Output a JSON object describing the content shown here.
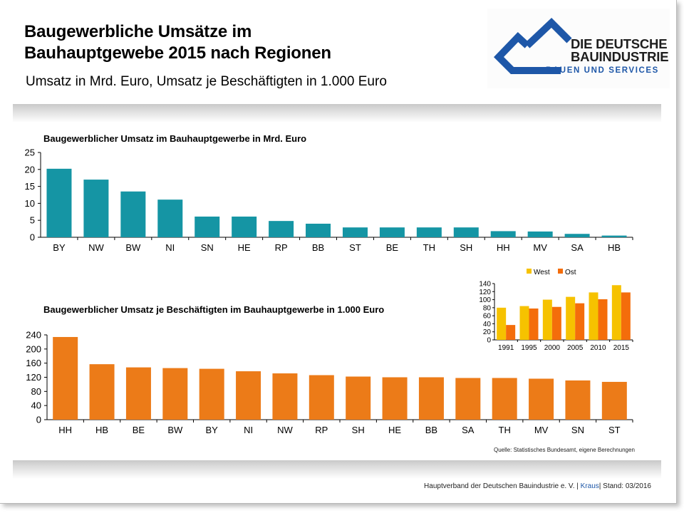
{
  "header": {
    "title_line1": "Baugewerbliche Umsätze im",
    "title_line2": "Bauhauptgewebe 2015 nach Regionen",
    "subtitle": "Umsatz in Mrd. Euro, Umsatz je Beschäftigten in 1.000 Euro"
  },
  "logo": {
    "line1": "DIE DEUTSCHE",
    "line2": "BAUINDUSTRIE",
    "line3": "BAUEN UND SERVICES",
    "color": "#1e57a8"
  },
  "source": "Quelle: Statistisches Bundesamt, eigene Berechnungen",
  "footer": {
    "org": "Hauptverband der Deutschen Bauindustrie e. V.",
    "author": "Kraus",
    "date": "Stand: 03/2016",
    "sep": "|"
  },
  "chart_data": [
    {
      "type": "bar",
      "title": "Baugewerblicher Umsatz im Bauhauptgewerbe in Mrd. Euro",
      "categories": [
        "BY",
        "NW",
        "BW",
        "NI",
        "SN",
        "HE",
        "RP",
        "BB",
        "ST",
        "BE",
        "TH",
        "SH",
        "HH",
        "MV",
        "SA",
        "HB"
      ],
      "values": [
        20.2,
        17.0,
        13.5,
        11.1,
        6.1,
        6.1,
        4.8,
        4.0,
        2.9,
        2.9,
        2.9,
        2.9,
        1.8,
        1.7,
        1.0,
        0.5
      ],
      "ylim": [
        0,
        25
      ],
      "yticks": [
        0,
        5,
        10,
        15,
        20,
        25
      ],
      "color": "#1595a4"
    },
    {
      "type": "bar",
      "title": "Baugewerblicher Umsatz je Beschäftigten im Bauhauptgewerbe in 1.000 Euro",
      "categories": [
        "HH",
        "HB",
        "BE",
        "BW",
        "BY",
        "NI",
        "NW",
        "RP",
        "SH",
        "HE",
        "BB",
        "SA",
        "TH",
        "MV",
        "SN",
        "ST"
      ],
      "values": [
        234,
        157,
        148,
        146,
        144,
        137,
        131,
        126,
        122,
        120,
        120,
        118,
        118,
        116,
        111,
        107
      ],
      "ylim": [
        0,
        240
      ],
      "yticks": [
        0,
        40,
        80,
        120,
        160,
        200,
        240
      ],
      "color": "#ec7b18"
    },
    {
      "type": "bar",
      "categories": [
        "1991",
        "1995",
        "2000",
        "2005",
        "2010",
        "2015"
      ],
      "series": [
        {
          "name": "West",
          "values": [
            80,
            84,
            100,
            107,
            118,
            136
          ],
          "color": "#f6c200"
        },
        {
          "name": "Ost",
          "values": [
            37,
            78,
            82,
            91,
            101,
            118
          ],
          "color": "#f46d0b"
        }
      ],
      "ylim": [
        0,
        140
      ],
      "yticks": [
        0,
        20,
        40,
        60,
        80,
        100,
        120,
        140
      ],
      "legend": "top"
    }
  ]
}
